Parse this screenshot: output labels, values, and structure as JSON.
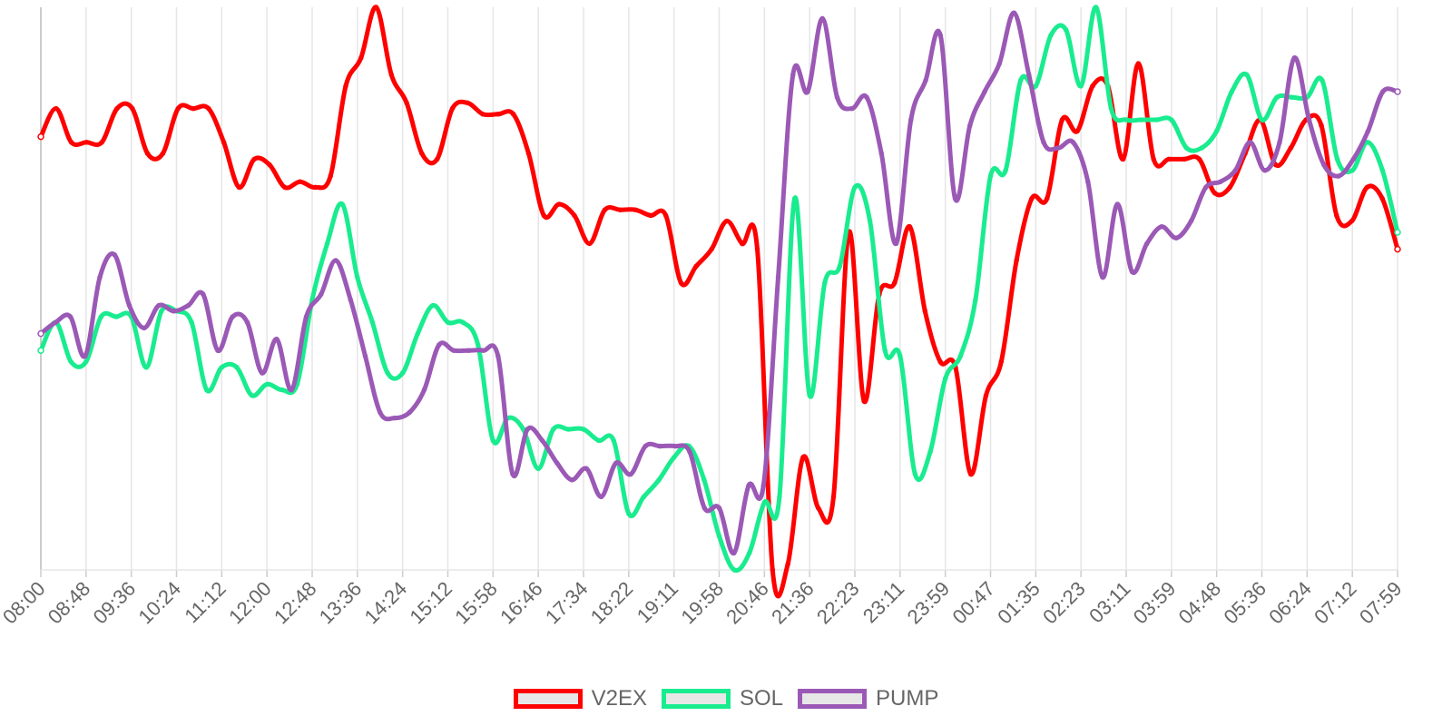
{
  "chart_data": {
    "type": "line",
    "title": "",
    "xlabel": "",
    "ylabel": "",
    "ylim": [
      0,
      100
    ],
    "grid": {
      "vertical": true,
      "horizontal": false
    },
    "legend_position": "bottom",
    "tick_labels": [
      "08:00",
      "08:48",
      "09:36",
      "10:24",
      "11:12",
      "12:00",
      "12:48",
      "13:36",
      "14:24",
      "15:12",
      "15:58",
      "16:46",
      "17:34",
      "18:22",
      "19:11",
      "19:58",
      "20:46",
      "21:36",
      "22:23",
      "23:11",
      "23:59",
      "00:47",
      "01:35",
      "02:23",
      "03:11",
      "03:59",
      "04:48",
      "05:36",
      "06:24",
      "07:12",
      "07:59"
    ],
    "series": [
      {
        "name": "V2EX",
        "color": "#ff0000",
        "values": [
          77,
          82,
          76,
          76,
          76,
          82,
          82,
          74,
          74,
          82,
          82,
          82,
          76,
          68,
          73,
          72,
          68,
          69,
          68,
          70,
          86,
          91,
          100,
          88,
          83,
          74,
          73,
          82,
          83,
          81,
          81,
          81,
          74,
          63,
          65,
          63,
          58,
          64,
          64,
          64,
          63,
          63,
          51,
          54,
          57,
          62,
          58,
          57,
          0,
          1,
          20,
          11,
          13,
          60,
          30,
          49,
          51,
          61,
          46,
          37,
          36,
          17,
          31,
          37,
          55,
          66,
          66,
          80,
          78,
          86,
          86,
          73,
          90,
          73,
          73,
          73,
          73,
          67,
          68,
          74,
          80,
          72,
          75,
          80,
          79,
          63,
          62,
          68,
          66,
          57
        ]
      },
      {
        "name": "SOL",
        "color": "#19ec8f",
        "values": [
          39,
          44,
          37,
          37,
          45,
          45,
          45,
          36,
          46,
          46,
          44,
          32,
          36,
          36,
          31,
          33,
          32,
          33,
          48,
          58,
          65,
          52,
          44,
          35,
          35,
          42,
          47,
          44,
          44,
          40,
          23,
          27,
          25,
          18,
          25,
          25,
          25,
          23,
          23,
          10,
          13,
          16,
          20,
          22,
          16,
          6,
          0,
          3,
          12,
          13,
          66,
          31,
          51,
          54,
          68,
          62,
          39,
          38,
          17,
          21,
          34,
          38,
          48,
          70,
          71,
          87,
          86,
          95,
          96,
          86,
          100,
          82,
          80,
          80,
          80,
          80,
          75,
          75,
          78,
          85,
          88,
          80,
          84,
          84,
          84,
          87,
          73,
          71,
          76,
          71,
          60
        ]
      },
      {
        "name": "PUMP",
        "color": "#9b59b6",
        "values": [
          42,
          44,
          45,
          38,
          52,
          56,
          47,
          43,
          47,
          46,
          47,
          49,
          39,
          45,
          44,
          35,
          41,
          32,
          45,
          49,
          55,
          48,
          38,
          28,
          27,
          28,
          32,
          40,
          39,
          39,
          39,
          38,
          17,
          25,
          23,
          19,
          16,
          18,
          13,
          19,
          17,
          22,
          22,
          22,
          21,
          11,
          11,
          3,
          15,
          15,
          52,
          88,
          85,
          98,
          84,
          82,
          84,
          74,
          58,
          80,
          87,
          95,
          66,
          79,
          85,
          90,
          99,
          88,
          76,
          75,
          76,
          69,
          52,
          65,
          53,
          58,
          61,
          59,
          62,
          68,
          69,
          71,
          76,
          71,
          76,
          91,
          80,
          72,
          70,
          73,
          78,
          85,
          85
        ]
      }
    ]
  }
}
